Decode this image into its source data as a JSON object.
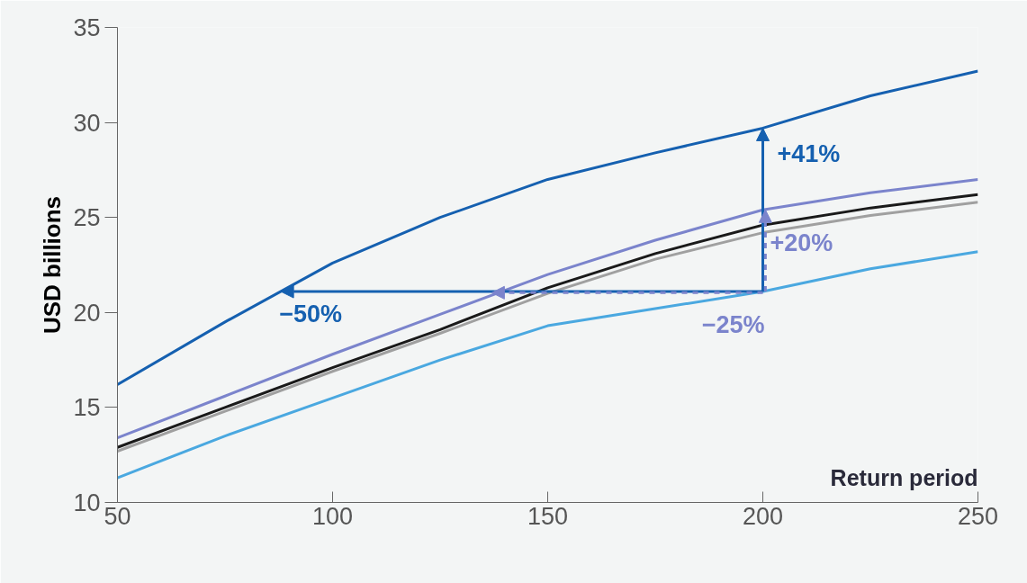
{
  "chart_data": {
    "type": "line",
    "xlabel": "Return period",
    "ylabel": "USD billions",
    "x": [
      50,
      75,
      100,
      125,
      150,
      175,
      200,
      225,
      250
    ],
    "series": [
      {
        "color": "#1560b0",
        "values": [
          16.2,
          19.5,
          22.6,
          25.0,
          27.0,
          28.4,
          29.7,
          31.4,
          32.7
        ]
      },
      {
        "color": "#7b84cc",
        "values": [
          13.4,
          15.6,
          17.8,
          19.9,
          22.0,
          23.8,
          25.4,
          26.3,
          27.0
        ]
      },
      {
        "color": "#1a1a1a",
        "values": [
          12.9,
          15.0,
          17.1,
          19.1,
          21.3,
          23.1,
          24.6,
          25.5,
          26.2
        ]
      },
      {
        "color": "#a0a0a0",
        "values": [
          12.7,
          14.8,
          16.9,
          18.9,
          21.0,
          22.8,
          24.2,
          25.1,
          25.8
        ]
      },
      {
        "color": "#4aa8e0",
        "values": [
          11.3,
          13.5,
          15.5,
          17.5,
          19.3,
          20.2,
          21.1,
          22.3,
          23.2
        ]
      }
    ],
    "xlim": [
      50,
      250
    ],
    "xticks": [
      50,
      100,
      150,
      200,
      250
    ],
    "ylim": [
      10,
      35
    ],
    "yticks": [
      10,
      15,
      20,
      25,
      30,
      35
    ],
    "grid": false,
    "marker": "none",
    "line_style": "solid",
    "annotations": [
      {
        "text": "−50%",
        "x": 88,
        "y": 21.1
      },
      {
        "text": "−25%",
        "x": 137,
        "y": 21.1
      },
      {
        "text": "+41%",
        "x": 200,
        "y": 29.7
      },
      {
        "text": "+20%",
        "x": 200,
        "y": 25.4
      }
    ]
  }
}
